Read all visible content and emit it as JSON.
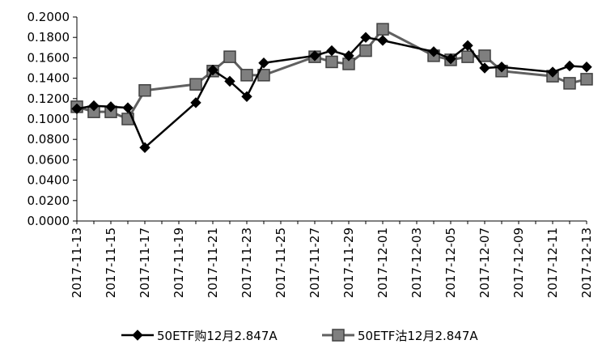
{
  "chart_data": {
    "type": "line",
    "title": "",
    "xlabel": "",
    "ylabel": "",
    "ylim": [
      0,
      0.2
    ],
    "y_ticks": [
      "0.0000",
      "0.0200",
      "0.0400",
      "0.0600",
      "0.0800",
      "0.1000",
      "0.1200",
      "0.1400",
      "0.1600",
      "0.1800",
      "0.2000"
    ],
    "x_range": [
      "2017-11-13",
      "2017-12-13"
    ],
    "x_ticks": [
      "2017-11-13",
      "2017-11-15",
      "2017-11-17",
      "2017-11-19",
      "2017-11-21",
      "2017-11-23",
      "2017-11-25",
      "2017-11-27",
      "2017-11-29",
      "2017-12-01",
      "2017-12-03",
      "2017-12-05",
      "2017-12-07",
      "2017-12-09",
      "2017-12-11",
      "2017-12-13"
    ],
    "grid": false,
    "legend_position": "bottom",
    "series": [
      {
        "name": "50ETF购12月2.847A",
        "color": "#000000",
        "marker": "diamond",
        "points": [
          {
            "x": "2017-11-13",
            "y": 0.11
          },
          {
            "x": "2017-11-14",
            "y": 0.113
          },
          {
            "x": "2017-11-15",
            "y": 0.112
          },
          {
            "x": "2017-11-16",
            "y": 0.111
          },
          {
            "x": "2017-11-17",
            "y": 0.072
          },
          {
            "x": "2017-11-20",
            "y": 0.116
          },
          {
            "x": "2017-11-21",
            "y": 0.148
          },
          {
            "x": "2017-11-22",
            "y": 0.137
          },
          {
            "x": "2017-11-23",
            "y": 0.122
          },
          {
            "x": "2017-11-24",
            "y": 0.155
          },
          {
            "x": "2017-11-27",
            "y": 0.162
          },
          {
            "x": "2017-11-28",
            "y": 0.167
          },
          {
            "x": "2017-11-29",
            "y": 0.162
          },
          {
            "x": "2017-11-30",
            "y": 0.18
          },
          {
            "x": "2017-12-01",
            "y": 0.177
          },
          {
            "x": "2017-12-04",
            "y": 0.166
          },
          {
            "x": "2017-12-05",
            "y": 0.159
          },
          {
            "x": "2017-12-06",
            "y": 0.172
          },
          {
            "x": "2017-12-07",
            "y": 0.15
          },
          {
            "x": "2017-12-08",
            "y": 0.151
          },
          {
            "x": "2017-12-11",
            "y": 0.146
          },
          {
            "x": "2017-12-12",
            "y": 0.152
          },
          {
            "x": "2017-12-13",
            "y": 0.151
          }
        ]
      },
      {
        "name": "50ETF沽12月2.847A",
        "color": "#606060",
        "marker": "square",
        "points": [
          {
            "x": "2017-11-13",
            "y": 0.112
          },
          {
            "x": "2017-11-14",
            "y": 0.107
          },
          {
            "x": "2017-11-15",
            "y": 0.107
          },
          {
            "x": "2017-11-16",
            "y": 0.1
          },
          {
            "x": "2017-11-17",
            "y": 0.128
          },
          {
            "x": "2017-11-20",
            "y": 0.134
          },
          {
            "x": "2017-11-21",
            "y": 0.147
          },
          {
            "x": "2017-11-22",
            "y": 0.161
          },
          {
            "x": "2017-11-23",
            "y": 0.143
          },
          {
            "x": "2017-11-24",
            "y": 0.143
          },
          {
            "x": "2017-11-27",
            "y": 0.161
          },
          {
            "x": "2017-11-28",
            "y": 0.156
          },
          {
            "x": "2017-11-29",
            "y": 0.154
          },
          {
            "x": "2017-11-30",
            "y": 0.167
          },
          {
            "x": "2017-12-01",
            "y": 0.188
          },
          {
            "x": "2017-12-04",
            "y": 0.162
          },
          {
            "x": "2017-12-05",
            "y": 0.158
          },
          {
            "x": "2017-12-06",
            "y": 0.161
          },
          {
            "x": "2017-12-07",
            "y": 0.162
          },
          {
            "x": "2017-12-08",
            "y": 0.147
          },
          {
            "x": "2017-12-11",
            "y": 0.142
          },
          {
            "x": "2017-12-12",
            "y": 0.135
          },
          {
            "x": "2017-12-13",
            "y": 0.139
          }
        ]
      }
    ]
  }
}
